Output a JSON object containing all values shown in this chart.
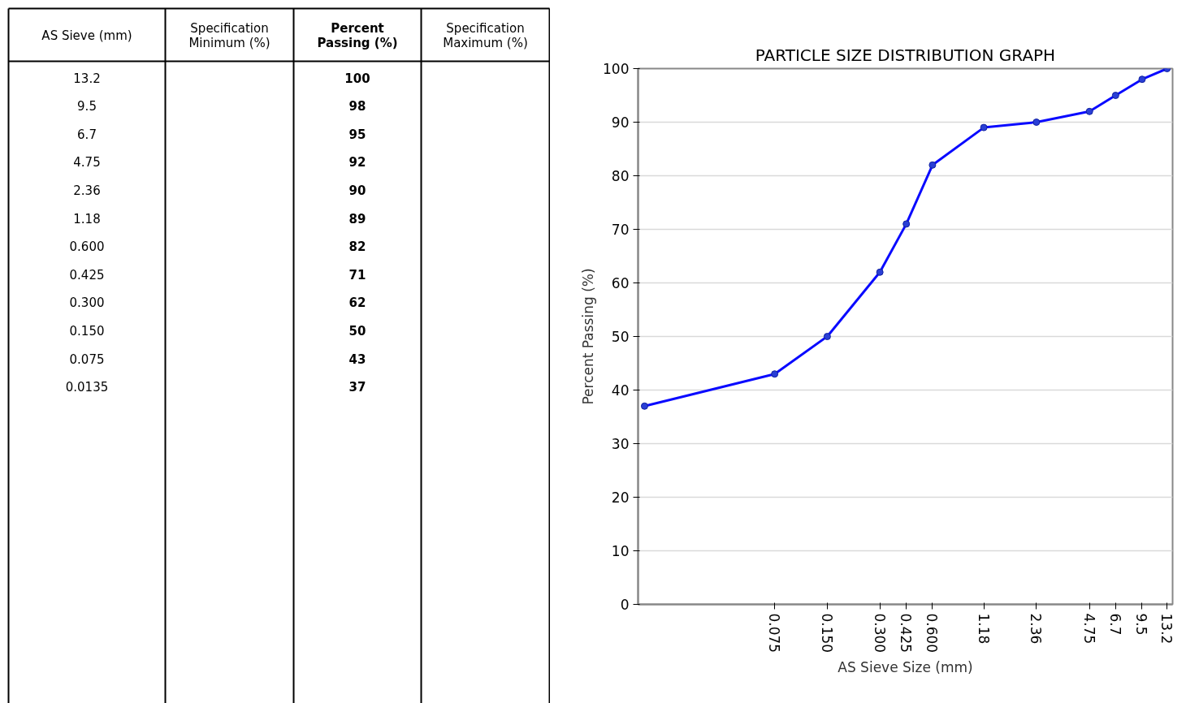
{
  "chart_data": {
    "type": "line",
    "title": "PARTICLE SIZE DISTRIBUTION GRAPH",
    "xlabel": "AS Sieve Size (mm)",
    "ylabel": "Percent Passing (%)",
    "log": "x",
    "x": [
      0.0135,
      0.075,
      0.15,
      0.3,
      0.425,
      0.6,
      1.18,
      2.36,
      4.75,
      6.7,
      9.5,
      13.2
    ],
    "series": [
      {
        "color": "#0a0aff",
        "values": [
          37,
          43,
          50,
          62,
          71,
          82,
          89,
          90,
          92,
          95,
          98,
          100
        ]
      }
    ],
    "marker": "circle",
    "line_style": "solid",
    "grid": "y",
    "xlim": [
      0.0124,
      14.2
    ],
    "ylim": [
      0,
      100
    ],
    "xticks": [
      {
        "value": 0.075,
        "label": "0.075"
      },
      {
        "value": 0.15,
        "label": "0.150"
      },
      {
        "value": 0.3,
        "label": "0.300"
      },
      {
        "value": 0.425,
        "label": "0.425"
      },
      {
        "value": 0.6,
        "label": "0.600"
      },
      {
        "value": 1.18,
        "label": "1.18"
      },
      {
        "value": 2.36,
        "label": "2.36"
      },
      {
        "value": 4.75,
        "label": "4.75"
      },
      {
        "value": 6.7,
        "label": "6.7"
      },
      {
        "value": 9.5,
        "label": "9.5"
      },
      {
        "value": 13.2,
        "label": "13.2"
      }
    ],
    "yticks": [
      0,
      10,
      20,
      30,
      40,
      50,
      60,
      70,
      80,
      90,
      100
    ],
    "annotations": [
      "AS Sieve (mm)",
      "Specification Minimum (%)",
      "Percent Passing (%)",
      "Specification Maximum (%)",
      "13.2",
      "100",
      "9.5",
      "98",
      "6.7",
      "95",
      "4.75",
      "92",
      "2.36",
      "90",
      "1.18",
      "89",
      "0.600",
      "82",
      "0.425",
      "71",
      "0.300",
      "62",
      "0.150",
      "50",
      "0.075",
      "43",
      "0.0135",
      "37"
    ]
  }
}
